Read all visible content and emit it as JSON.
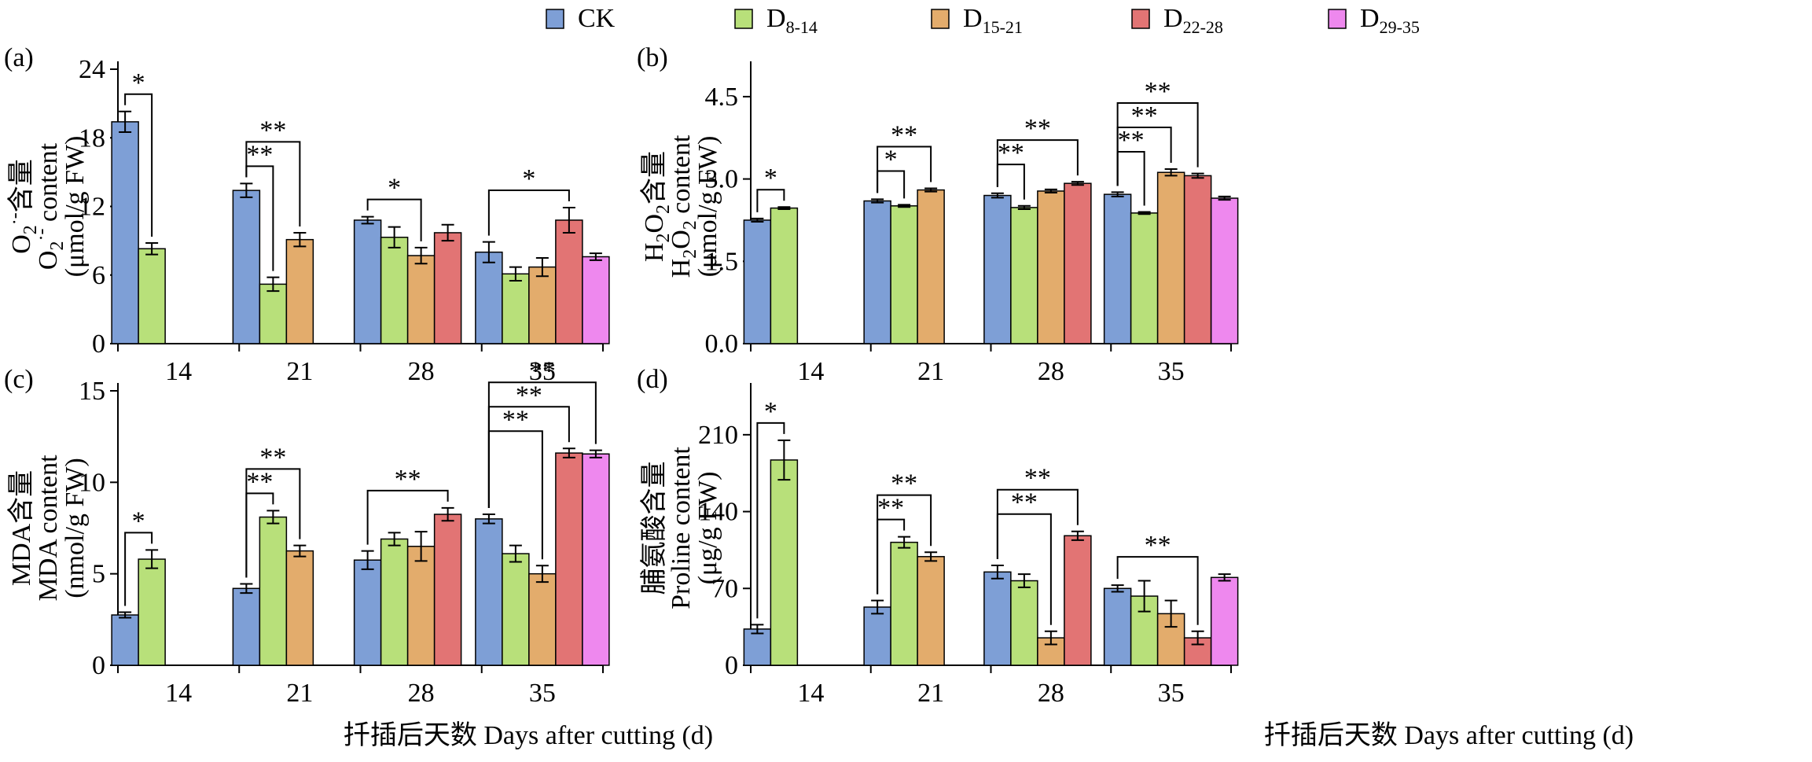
{
  "legend": [
    {
      "label": "CK",
      "color": "#7e9fd6"
    },
    {
      "label": "D8-14",
      "base": "D",
      "sub": "8-14",
      "color": "#b8e07a"
    },
    {
      "label": "D15-21",
      "base": "D",
      "sub": "15-21",
      "color": "#e3ac6c"
    },
    {
      "label": "D22-28",
      "base": "D",
      "sub": "22-28",
      "color": "#e27474"
    },
    {
      "label": "D29-35",
      "base": "D",
      "sub": "29-35",
      "color": "#ee88ee"
    }
  ],
  "x_axis_label": "扦插后天数 Days after cutting (d)",
  "chart_data": [
    {
      "panel": "(a)",
      "type": "bar",
      "ylabel_zh": "O2·-含量",
      "ylabel_en": "O2·- content",
      "ylabel_unit": "(μmol/g FW)",
      "ylim": [
        0,
        24
      ],
      "yticks": [
        0,
        6,
        12,
        18,
        24
      ],
      "categories": [
        "14",
        "21",
        "28",
        "35"
      ],
      "series": [
        {
          "name": "CK",
          "values": [
            19.4,
            13.4,
            10.8,
            8.0
          ],
          "errors": [
            0.9,
            0.6,
            0.3,
            0.9
          ]
        },
        {
          "name": "D8-14",
          "values": [
            8.3,
            5.2,
            9.3,
            6.1
          ],
          "errors": [
            0.5,
            0.6,
            0.9,
            0.6
          ]
        },
        {
          "name": "D15-21",
          "values": [
            null,
            9.1,
            7.7,
            6.7
          ],
          "errors": [
            null,
            0.6,
            0.7,
            0.8
          ]
        },
        {
          "name": "D22-28",
          "values": [
            null,
            null,
            9.7,
            10.8
          ],
          "errors": [
            null,
            null,
            0.7,
            1.1
          ]
        },
        {
          "name": "D29-35",
          "values": [
            null,
            null,
            null,
            7.6
          ],
          "errors": [
            null,
            null,
            null,
            0.3
          ]
        }
      ],
      "significance": [
        {
          "group": 0,
          "from": 0,
          "to": 1,
          "label": "*",
          "level": 0
        },
        {
          "group": 1,
          "from": 0,
          "to": 1,
          "label": "**",
          "level": 0
        },
        {
          "group": 1,
          "from": 0,
          "to": 2,
          "label": "**",
          "level": 1
        },
        {
          "group": 2,
          "from": 0,
          "to": 2,
          "label": "*",
          "level": 0
        },
        {
          "group": 3,
          "from": 0,
          "to": 3,
          "label": "*",
          "level": 0
        }
      ]
    },
    {
      "panel": "(b)",
      "type": "bar",
      "ylabel_zh": "H2O2含量",
      "ylabel_en": "H2O2 content",
      "ylabel_unit": "(μmol/g FW)",
      "ylim": [
        0,
        5.0
      ],
      "yticks": [
        "0.0",
        "1.5",
        "3.0",
        "4.5"
      ],
      "categories": [
        "14",
        "21",
        "28",
        "35"
      ],
      "series": [
        {
          "name": "CK",
          "values": [
            2.25,
            2.6,
            2.7,
            2.72
          ],
          "errors": [
            0.03,
            0.03,
            0.04,
            0.04
          ]
        },
        {
          "name": "D8-14",
          "values": [
            2.47,
            2.51,
            2.48,
            2.38
          ],
          "errors": [
            0.02,
            0.02,
            0.03,
            0.02
          ]
        },
        {
          "name": "D15-21",
          "values": [
            null,
            2.8,
            2.78,
            3.12
          ],
          "errors": [
            null,
            0.03,
            0.03,
            0.06
          ]
        },
        {
          "name": "D22-28",
          "values": [
            null,
            null,
            2.92,
            3.06
          ],
          "errors": [
            null,
            null,
            0.03,
            0.04
          ]
        },
        {
          "name": "D29-35",
          "values": [
            null,
            null,
            null,
            2.65
          ],
          "errors": [
            null,
            null,
            null,
            0.03
          ]
        }
      ],
      "significance": [
        {
          "group": 0,
          "from": 0,
          "to": 1,
          "label": "*",
          "level": 0
        },
        {
          "group": 1,
          "from": 0,
          "to": 1,
          "label": "*",
          "level": 0
        },
        {
          "group": 1,
          "from": 0,
          "to": 2,
          "label": "**",
          "level": 1
        },
        {
          "group": 2,
          "from": 0,
          "to": 1,
          "label": "**",
          "level": 0
        },
        {
          "group": 2,
          "from": 0,
          "to": 3,
          "label": "**",
          "level": 1
        },
        {
          "group": 3,
          "from": 0,
          "to": 1,
          "label": "**",
          "level": 0
        },
        {
          "group": 3,
          "from": 0,
          "to": 2,
          "label": "**",
          "level": 1
        },
        {
          "group": 3,
          "from": 0,
          "to": 3,
          "label": "**",
          "level": 2
        }
      ]
    },
    {
      "panel": "(c)",
      "type": "bar",
      "ylabel_zh": "MDA含量",
      "ylabel_en": "MDA content",
      "ylabel_unit": "(nmol/g FW)",
      "ylim": [
        0,
        15
      ],
      "yticks": [
        0,
        5,
        10,
        15
      ],
      "categories": [
        "14",
        "21",
        "28",
        "35"
      ],
      "series": [
        {
          "name": "CK",
          "values": [
            2.75,
            4.2,
            5.75,
            8.0
          ],
          "errors": [
            0.15,
            0.25,
            0.5,
            0.25
          ]
        },
        {
          "name": "D8-14",
          "values": [
            5.8,
            8.1,
            6.9,
            6.1
          ],
          "errors": [
            0.5,
            0.35,
            0.35,
            0.45
          ]
        },
        {
          "name": "D15-21",
          "values": [
            null,
            6.25,
            6.5,
            5.0
          ],
          "errors": [
            null,
            0.3,
            0.8,
            0.45
          ]
        },
        {
          "name": "D22-28",
          "values": [
            null,
            null,
            8.25,
            11.6
          ],
          "errors": [
            null,
            null,
            0.35,
            0.25
          ]
        },
        {
          "name": "D29-35",
          "values": [
            null,
            null,
            null,
            11.55
          ],
          "errors": [
            null,
            null,
            null,
            0.2
          ]
        }
      ],
      "significance": [
        {
          "group": 0,
          "from": 0,
          "to": 1,
          "label": "*",
          "level": 0
        },
        {
          "group": 1,
          "from": 0,
          "to": 1,
          "label": "**",
          "level": 0
        },
        {
          "group": 1,
          "from": 0,
          "to": 2,
          "label": "**",
          "level": 1
        },
        {
          "group": 2,
          "from": 0,
          "to": 3,
          "label": "**",
          "level": 0
        },
        {
          "group": 3,
          "from": 0,
          "to": 2,
          "label": "**",
          "level": 0
        },
        {
          "group": 3,
          "from": 0,
          "to": 3,
          "label": "**",
          "level": 1
        },
        {
          "group": 3,
          "from": 0,
          "to": 4,
          "label": "**",
          "level": 2
        }
      ]
    },
    {
      "panel": "(d)",
      "type": "bar",
      "ylabel_zh": "脯氨酸含量",
      "ylabel_en": "Proline content",
      "ylabel_unit": "(μg/g FW)",
      "ylim": [
        0,
        250
      ],
      "yticks": [
        0,
        70,
        140,
        210
      ],
      "categories": [
        "14",
        "21",
        "28",
        "35"
      ],
      "series": [
        {
          "name": "CK",
          "values": [
            33,
            53,
            85,
            70
          ],
          "errors": [
            4,
            6,
            6,
            3
          ]
        },
        {
          "name": "D8-14",
          "values": [
            187,
            112,
            77,
            63
          ],
          "errors": [
            18,
            5,
            6,
            14
          ]
        },
        {
          "name": "D15-21",
          "values": [
            null,
            99,
            25,
            47
          ],
          "errors": [
            null,
            4,
            6,
            12
          ]
        },
        {
          "name": "D22-28",
          "values": [
            null,
            null,
            118,
            25
          ],
          "errors": [
            null,
            null,
            4,
            6
          ]
        },
        {
          "name": "D29-35",
          "values": [
            null,
            null,
            null,
            80
          ],
          "errors": [
            null,
            null,
            null,
            3
          ]
        }
      ],
      "significance": [
        {
          "group": 0,
          "from": 0,
          "to": 1,
          "label": "*",
          "level": 0
        },
        {
          "group": 1,
          "from": 0,
          "to": 1,
          "label": "**",
          "level": 0
        },
        {
          "group": 1,
          "from": 0,
          "to": 2,
          "label": "**",
          "level": 1
        },
        {
          "group": 2,
          "from": 0,
          "to": 2,
          "label": "**",
          "level": 0
        },
        {
          "group": 2,
          "from": 0,
          "to": 3,
          "label": "**",
          "level": 1
        },
        {
          "group": 3,
          "from": 0,
          "to": 3,
          "label": "**",
          "level": 0
        }
      ]
    }
  ]
}
